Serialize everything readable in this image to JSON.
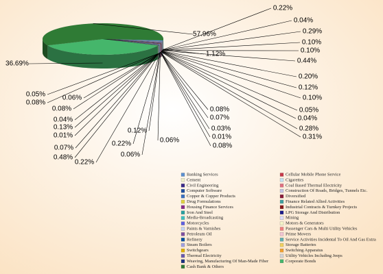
{
  "chart_data": {
    "type": "pie",
    "categories": [
      "Banking Services",
      "Cellular Mobile Phone Service",
      "Cement",
      "Cigarettes",
      "Civil Engineering",
      "Coal Based Thermal Electricity",
      "Computer Software",
      "Construction Of Roads, Bridges, Tunnels Etc.",
      "Copper & Copper Products",
      "Diversified",
      "Drug Formulations",
      "Finance Related Allied Activities",
      "Housing Finance Services",
      "Industrial Contracts & Turnkey Projects",
      "Iron And Steel",
      "LPG Storage And Distribution",
      "Media-Broadcasting",
      "Mining",
      "Motorcycles",
      "Motors & Generators",
      "Paints & Varnishes",
      "Passenger Cars & Multi Utility Vehicles",
      "Petroleum Oil",
      "Prime Movers",
      "Refinery",
      "Service Activities Incidental To Oil And Gas Extra",
      "Steam Boilers",
      "Storage Batteries",
      "Switchgears",
      "Switching Apparatus",
      "Thermal Electricity",
      "Utility Vehicles Including Jeeps",
      "Weaving, Manufacturing Of Man-Made Fiber",
      "Corporate Bonds",
      "Cash Bank & Others"
    ],
    "values": [
      1.12,
      0.22,
      0.04,
      0.29,
      0.1,
      0.1,
      0.44,
      0.2,
      0.12,
      0.1,
      0.05,
      0.04,
      0.28,
      0.31,
      0.08,
      0.07,
      0.03,
      0.01,
      0.08,
      0.06,
      0.12,
      0.06,
      0.22,
      0.22,
      0.48,
      0.07,
      0.01,
      0.13,
      0.04,
      0.08,
      0.08,
      0.06,
      0.05,
      36.69,
      57.96
    ],
    "value_labels": [
      "1.12%",
      "0.22%",
      "0.04%",
      "0.29%",
      "0.10%",
      "0.10%",
      "0.44%",
      "0.20%",
      "0.12%",
      "0.10%",
      "0.05%",
      "0.04%",
      "0.28%",
      "0.31%",
      "0.08%",
      "0.07%",
      "0.03%",
      "0.01%",
      "0.08%",
      "0.06%",
      "0.12%",
      "0.06%",
      "0.22%",
      "0.22%",
      "0.48%",
      "0.07%",
      "0.01%",
      "0.13%",
      "0.04%",
      "0.08%",
      "0.08%",
      "0.06%",
      "0.05%",
      "36.69%",
      "57.96%"
    ],
    "colors": [
      "#5b8fd0",
      "#c8384a",
      "#eeeec8",
      "#c4e2f2",
      "#3a2a8a",
      "#e07080",
      "#1f4fa0",
      "#c4c4e4",
      "#3a70c0",
      "#8a1a3a",
      "#e0d040",
      "#40a0a0",
      "#8a2a8a",
      "#8a1a1a",
      "#2aa0a0",
      "#1a1a8a",
      "#40c0c0",
      "#dcdcf8",
      "#6060e0",
      "#f4f4c8",
      "#c4d4f4",
      "#f08080",
      "#8050a0",
      "#f2c4d2",
      "#0050a0",
      "#60b0b0",
      "#a0a0e0",
      "#f0d060",
      "#e0b000",
      "#f0a030",
      "#6a5ab0",
      "#d4d4d4",
      "#1a3080",
      "#45b66b",
      "#2f7b35"
    ],
    "legend": "bottom-right"
  }
}
